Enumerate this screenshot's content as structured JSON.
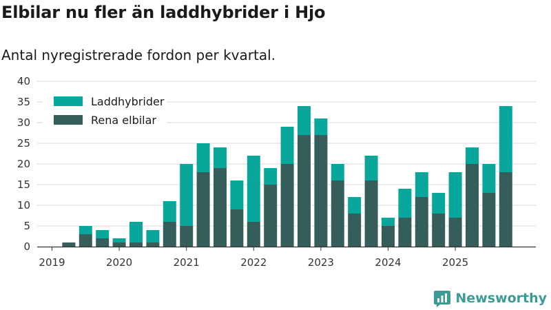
{
  "title": "Elbilar nu fler än laddhybrider i Hjo",
  "subtitle": "Antal nyregistrerade fordon per kvartal.",
  "brand": "Newsworthy",
  "colors": {
    "laddhybrider": "#09a69c",
    "elbilar": "#355e5b",
    "grid": "#d9d9d9",
    "axis": "#333333",
    "brand": "#3d9b96"
  },
  "chart_data": {
    "type": "bar",
    "stacked": true,
    "categories": [
      "2019 Q1",
      "2019 Q2",
      "2019 Q3",
      "2019 Q4",
      "2020 Q1",
      "2020 Q2",
      "2020 Q3",
      "2020 Q4",
      "2021 Q1",
      "2021 Q2",
      "2021 Q3",
      "2021 Q4",
      "2022 Q1",
      "2022 Q2",
      "2022 Q3",
      "2022 Q4",
      "2023 Q1",
      "2023 Q2",
      "2023 Q3",
      "2023 Q4",
      "2024 Q1",
      "2024 Q2",
      "2024 Q3",
      "2024 Q4",
      "2025 Q1",
      "2025 Q2",
      "2025 Q3",
      "2025 Q4"
    ],
    "x_tick_labels": [
      "2019",
      "2020",
      "2021",
      "2022",
      "2023",
      "2024",
      "2025"
    ],
    "series": [
      {
        "name": "Rena elbilar",
        "values": [
          0,
          1,
          3,
          2,
          1,
          1,
          1,
          6,
          5,
          18,
          19,
          9,
          6,
          15,
          20,
          27,
          27,
          16,
          8,
          16,
          5,
          7,
          12,
          8,
          7,
          20,
          13,
          18
        ]
      },
      {
        "name": "Laddhybrider",
        "values": [
          0,
          0,
          2,
          2,
          1,
          5,
          3,
          5,
          15,
          7,
          5,
          7,
          16,
          4,
          9,
          7,
          4,
          4,
          4,
          6,
          2,
          7,
          6,
          5,
          11,
          4,
          7,
          16
        ]
      }
    ],
    "legend": [
      "Laddhybrider",
      "Rena elbilar"
    ],
    "legend_position": "top-left",
    "ylim": [
      0,
      40
    ],
    "y_ticks": [
      0,
      5,
      10,
      15,
      20,
      25,
      30,
      35,
      40
    ],
    "grid": true
  }
}
